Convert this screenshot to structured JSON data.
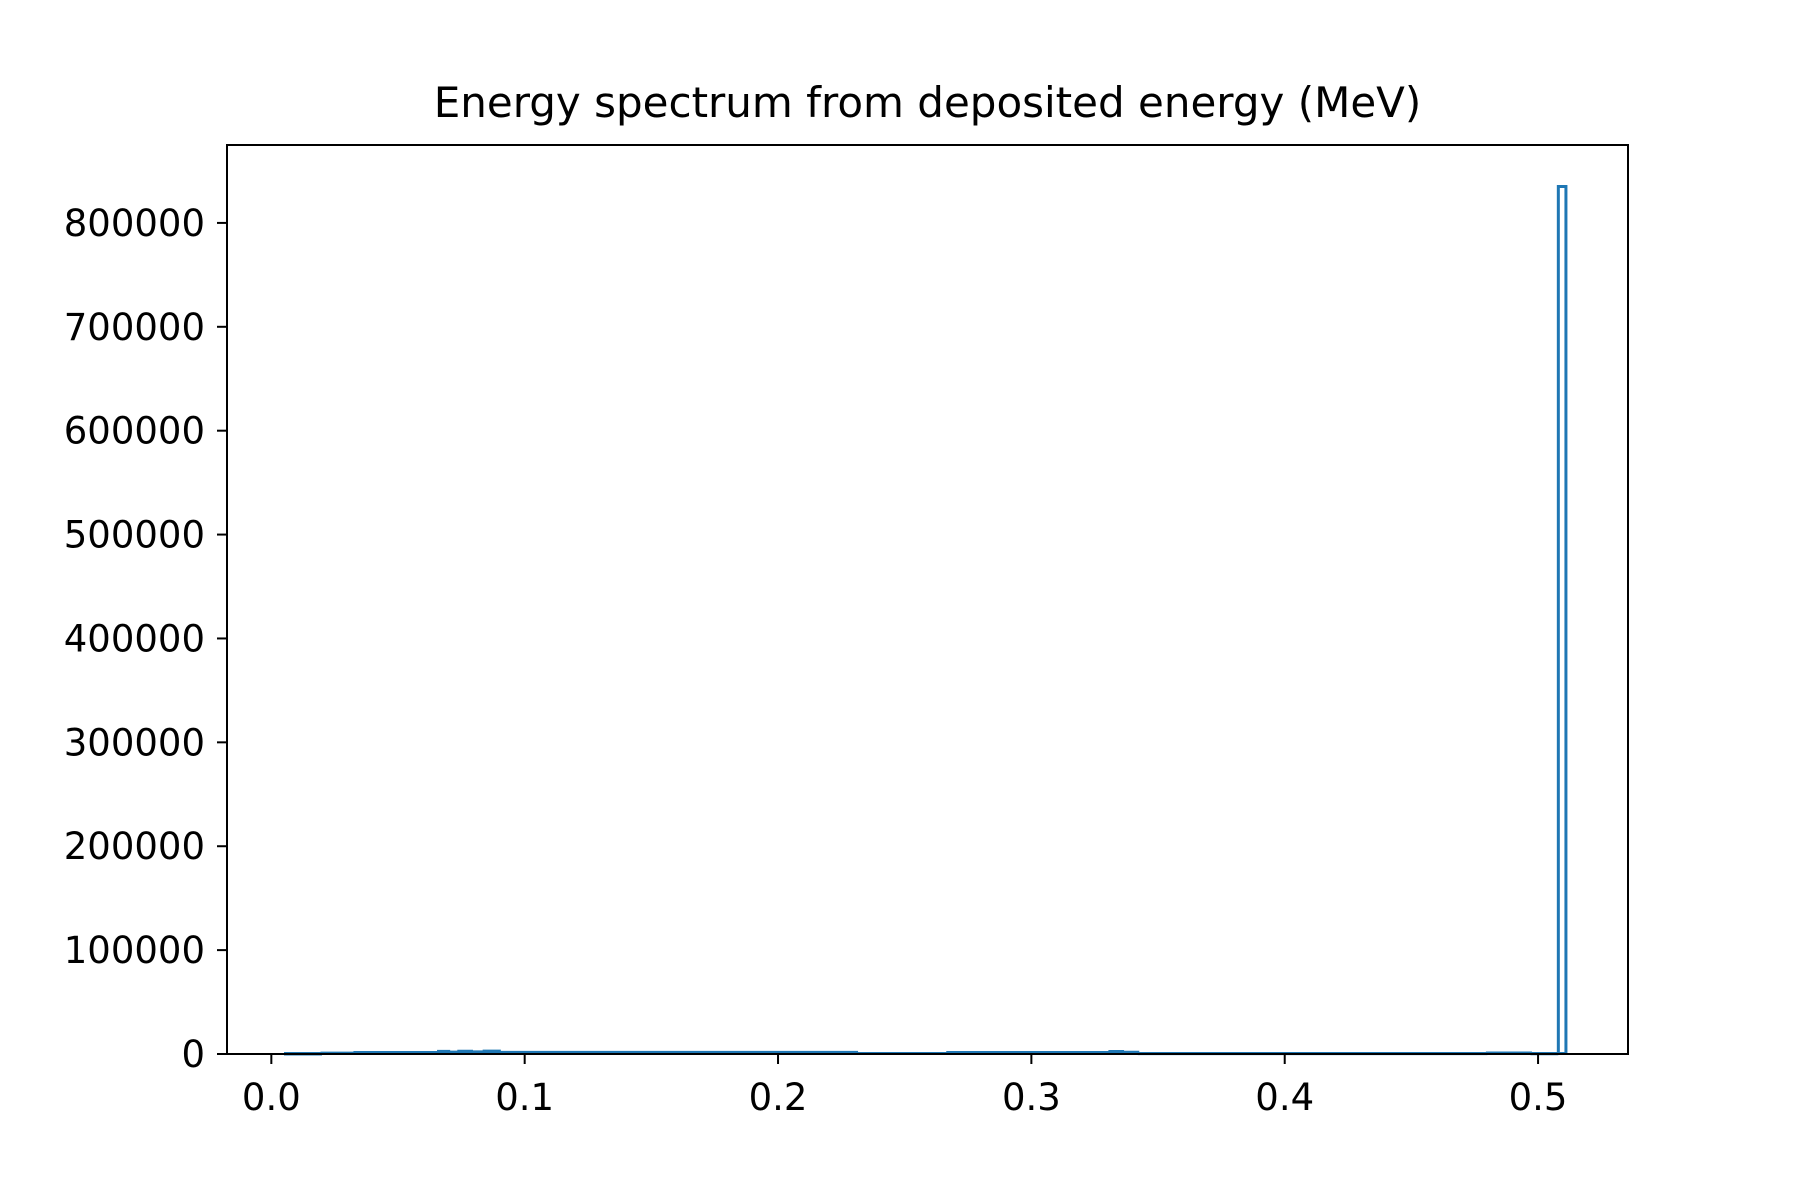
{
  "chart_data": {
    "type": "histogram",
    "title": "Energy spectrum from deposited energy (MeV)",
    "xlabel": "",
    "ylabel": "",
    "xlim": [
      -0.0175,
      0.5355
    ],
    "ylim": [
      0,
      875000
    ],
    "x_ticks": [
      0.0,
      0.1,
      0.2,
      0.3,
      0.4,
      0.5
    ],
    "x_tick_labels": [
      "0.0",
      "0.1",
      "0.2",
      "0.3",
      "0.4",
      "0.5"
    ],
    "y_ticks": [
      0,
      100000,
      200000,
      300000,
      400000,
      500000,
      600000,
      700000,
      800000
    ],
    "y_tick_labels": [
      "0",
      "100000",
      "200000",
      "300000",
      "400000",
      "500000",
      "600000",
      "700000",
      "800000"
    ],
    "grid": false,
    "histtype": "step",
    "color": "#1f77b4",
    "bins": [
      {
        "x0": 0.005,
        "x1": 0.02,
        "count": 0
      },
      {
        "x0": 0.02,
        "x1": 0.033,
        "count": 800
      },
      {
        "x0": 0.033,
        "x1": 0.066,
        "count": 1500
      },
      {
        "x0": 0.066,
        "x1": 0.07,
        "count": 2500
      },
      {
        "x0": 0.07,
        "x1": 0.074,
        "count": 1800
      },
      {
        "x0": 0.074,
        "x1": 0.079,
        "count": 2600
      },
      {
        "x0": 0.079,
        "x1": 0.084,
        "count": 2000
      },
      {
        "x0": 0.084,
        "x1": 0.09,
        "count": 2800
      },
      {
        "x0": 0.09,
        "x1": 0.231,
        "count": 1600
      },
      {
        "x0": 0.231,
        "x1": 0.267,
        "count": 500
      },
      {
        "x0": 0.267,
        "x1": 0.331,
        "count": 1500
      },
      {
        "x0": 0.331,
        "x1": 0.336,
        "count": 2400
      },
      {
        "x0": 0.336,
        "x1": 0.342,
        "count": 1700
      },
      {
        "x0": 0.342,
        "x1": 0.48,
        "count": 400
      },
      {
        "x0": 0.48,
        "x1": 0.497,
        "count": 1000
      },
      {
        "x0": 0.497,
        "x1": 0.508,
        "count": 300
      },
      {
        "x0": 0.508,
        "x1": 0.511,
        "count": 835000
      }
    ]
  }
}
